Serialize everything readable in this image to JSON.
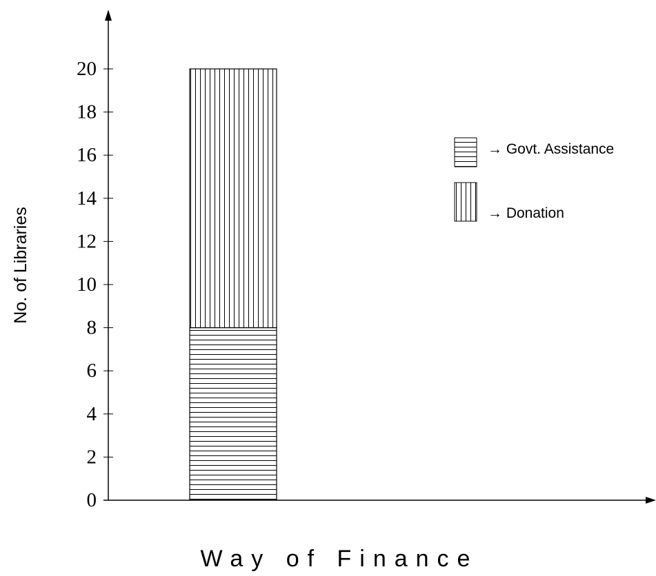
{
  "chart_data": {
    "type": "bar",
    "stacked": true,
    "categories": [
      ""
    ],
    "series": [
      {
        "name": "Govt. Assistance",
        "values": [
          8
        ],
        "pattern": "horizontal-lines"
      },
      {
        "name": "Donation",
        "values": [
          12
        ],
        "pattern": "vertical-lines"
      }
    ],
    "xlabel": "Way of Finance",
    "ylabel": "No. of Libraries",
    "ylim": [
      0,
      20
    ],
    "yticks": [
      "0",
      "2",
      "4",
      "6",
      "8",
      "10",
      "12",
      "14",
      "16",
      "18",
      "20"
    ],
    "grid": false,
    "legend_position": "right",
    "legend": [
      {
        "label": "→ Govt. Assistance",
        "pattern": "horizontal-lines"
      },
      {
        "label": "→ Donation",
        "pattern": "vertical-lines"
      }
    ]
  }
}
